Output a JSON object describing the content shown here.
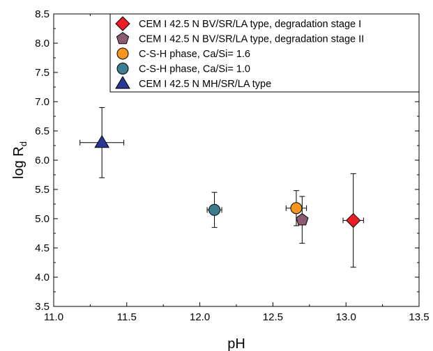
{
  "chart_data": {
    "type": "scatter",
    "xlabel": "pH",
    "ylabel": "log R",
    "ylabel_sub": "d",
    "xlim": [
      11.0,
      13.5
    ],
    "ylim": [
      3.5,
      8.5
    ],
    "x_ticks": [
      "11.0",
      "11.5",
      "12.0",
      "12.5",
      "13.0",
      "13.5"
    ],
    "y_ticks": [
      "3.5",
      "4.0",
      "4.5",
      "5.0",
      "5.5",
      "6.0",
      "6.5",
      "7.0",
      "7.5",
      "8.0",
      "8.5"
    ],
    "grid": false,
    "legend_position": "top-right",
    "series": [
      {
        "name": "CEM I 42.5 N BV/SR/LA type, degradation stage I",
        "marker": "diamond",
        "color": "#ee1c25",
        "x": 13.05,
        "y": 4.97,
        "xerr": 0.07,
        "yerr": 0.8
      },
      {
        "name": "CEM I 42.5 N BV/SR/LA type, degradation stage II",
        "marker": "pentagon",
        "color": "#8c5a75",
        "x": 12.7,
        "y": 4.98,
        "xerr": 0.03,
        "yerr": 0.4
      },
      {
        "name": "C-S-H phase, Ca/Si= 1.6",
        "marker": "circle",
        "color": "#f7941d",
        "x": 12.66,
        "y": 5.18,
        "xerr": 0.07,
        "yerr": 0.3
      },
      {
        "name": "C-S-H phase, Ca/Si= 1.0",
        "marker": "circle",
        "color": "#3d7b8e",
        "x": 12.1,
        "y": 5.15,
        "xerr": 0.05,
        "yerr": 0.3
      },
      {
        "name": "CEM I 42.5 N MH/SR/LA type",
        "marker": "triangle",
        "color": "#2b3595",
        "x": 11.33,
        "y": 6.3,
        "xerr": 0.15,
        "yerr": 0.6
      }
    ]
  }
}
